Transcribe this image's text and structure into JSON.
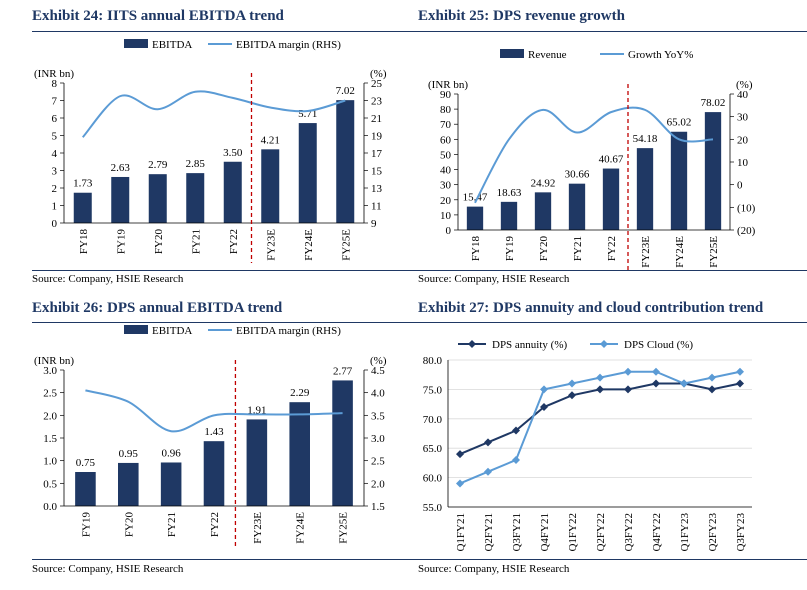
{
  "colors": {
    "title": "#1f3864",
    "bar": "#1f3864",
    "line": "#5b9bd5",
    "divider": "#c00000",
    "grid": "#d9d9d9"
  },
  "panels": [
    {
      "title": "Exhibit 24: IITS annual EBITDA trend",
      "source": "Source: Company, HSIE Research",
      "chart_data": {
        "type": "bar",
        "categories": [
          "FY18",
          "FY19",
          "FY20",
          "FY21",
          "FY22",
          "FY23E",
          "FY24E",
          "FY25E"
        ],
        "series": [
          {
            "name": "EBITDA",
            "axis": "left",
            "type": "bar",
            "values": [
              1.73,
              2.63,
              2.79,
              2.85,
              3.5,
              4.21,
              5.71,
              7.02
            ],
            "labels": [
              "1.73",
              "2.63",
              "2.79",
              "2.85",
              "3.50",
              "4.21",
              "5.71",
              "7.02"
            ]
          },
          {
            "name": "EBITDA margin (RHS)",
            "axis": "right",
            "type": "line",
            "values": [
              18.8,
              23.5,
              22.0,
              24.0,
              23.3,
              22.2,
              21.8,
              23.0
            ]
          }
        ],
        "left_axis": {
          "label": "(INR bn)",
          "min": 0,
          "max": 8,
          "ticks": [
            0,
            1,
            2,
            3,
            4,
            5,
            6,
            7,
            8
          ],
          "tick_labels": [
            "0",
            "1",
            "2",
            "3",
            "4",
            "5",
            "6",
            "7",
            "8"
          ]
        },
        "right_axis": {
          "label": "(%)",
          "min": 9,
          "max": 25,
          "ticks": [
            9,
            11,
            13,
            15,
            17,
            19,
            21,
            23,
            25
          ],
          "tick_labels": [
            "9",
            "11",
            "13",
            "15",
            "17",
            "19",
            "21",
            "23",
            "25"
          ]
        },
        "divider_after_index": 4
      }
    },
    {
      "title": "Exhibit 25: DPS revenue growth",
      "source": "Source: Company, HSIE Research",
      "chart_data": {
        "type": "bar",
        "categories": [
          "FY18",
          "FY19",
          "FY20",
          "FY21",
          "FY22",
          "FY23E",
          "FY24E",
          "FY25E"
        ],
        "series": [
          {
            "name": "Revenue",
            "axis": "left",
            "type": "bar",
            "values": [
              15.47,
              18.63,
              24.92,
              30.66,
              40.67,
              54.18,
              65.02,
              78.02
            ],
            "labels": [
              "15.47",
              "18.63",
              "24.92",
              "30.66",
              "40.67",
              "54.18",
              "65.02",
              "78.02"
            ]
          },
          {
            "name": "Growth YoY%",
            "axis": "right",
            "type": "line",
            "start_index": 0,
            "values": [
              -8,
              20,
              33,
              23,
              32,
              33,
              20,
              20
            ]
          }
        ],
        "left_axis": {
          "label": "(INR bn)",
          "min": 0,
          "max": 90,
          "ticks": [
            0,
            10,
            20,
            30,
            40,
            50,
            60,
            70,
            80,
            90
          ],
          "tick_labels": [
            "0",
            "10",
            "20",
            "30",
            "40",
            "50",
            "60",
            "70",
            "80",
            "90"
          ]
        },
        "right_axis": {
          "label": "(%)",
          "min": -20,
          "max": 40,
          "ticks": [
            -20,
            -10,
            0,
            10,
            20,
            30,
            40
          ],
          "tick_labels": [
            "(20)",
            "(10)",
            "0",
            "10",
            "20",
            "30",
            "40"
          ]
        },
        "divider_after_index": 4
      }
    },
    {
      "title": "Exhibit 26: DPS annual EBITDA trend",
      "source": "Source: Company, HSIE Research",
      "chart_data": {
        "type": "bar",
        "categories": [
          "FY19",
          "FY20",
          "FY21",
          "FY22",
          "FY23E",
          "FY24E",
          "FY25E"
        ],
        "series": [
          {
            "name": "EBITDA",
            "axis": "left",
            "type": "bar",
            "values": [
              0.75,
              0.95,
              0.96,
              1.43,
              1.91,
              2.29,
              2.77
            ],
            "labels": [
              "0.75",
              "0.95",
              "0.96",
              "1.43",
              "1.91",
              "2.29",
              "2.77"
            ]
          },
          {
            "name": "EBITDA margin (RHS)",
            "axis": "right",
            "type": "line",
            "values": [
              4.05,
              3.8,
              3.15,
              3.5,
              3.52,
              3.52,
              3.55
            ]
          }
        ],
        "left_axis": {
          "label": "(INR bn)",
          "min": 0,
          "max": 3.0,
          "ticks": [
            0,
            0.5,
            1.0,
            1.5,
            2.0,
            2.5,
            3.0
          ],
          "tick_labels": [
            "0.0",
            "0.5",
            "1.0",
            "1.5",
            "2.0",
            "2.5",
            "3.0"
          ]
        },
        "right_axis": {
          "label": "(%)",
          "min": 1.5,
          "max": 4.5,
          "ticks": [
            1.5,
            2.0,
            2.5,
            3.0,
            3.5,
            4.0,
            4.5
          ],
          "tick_labels": [
            "1.5",
            "2.0",
            "2.5",
            "3.0",
            "3.5",
            "4.0",
            "4.5"
          ]
        },
        "divider_after_index": 3
      }
    },
    {
      "title": "Exhibit 27: DPS annuity and cloud contribution trend",
      "source": "Source: Company, HSIE Research",
      "chart_data": {
        "type": "line",
        "categories": [
          "Q1FY21",
          "Q2FY21",
          "Q3FY21",
          "Q4FY21",
          "Q1FY22",
          "Q2FY22",
          "Q3FY22",
          "Q4FY22",
          "Q1FY23",
          "Q2FY23",
          "Q3FY23"
        ],
        "series": [
          {
            "name": "DPS annuity (%)",
            "values": [
              64,
              66,
              68,
              72,
              74,
              75,
              75,
              76,
              76,
              75,
              76
            ],
            "color": "#1f3864",
            "marker": "diamond"
          },
          {
            "name": "DPS Cloud (%)",
            "values": [
              59,
              61,
              63,
              75,
              76,
              77,
              78,
              78,
              76,
              77,
              78
            ],
            "color": "#5b9bd5",
            "marker": "diamond"
          }
        ],
        "left_axis": {
          "min": 55,
          "max": 80,
          "ticks": [
            55,
            60,
            65,
            70,
            75,
            80
          ],
          "tick_labels": [
            "55.0",
            "60.0",
            "65.0",
            "70.0",
            "75.0",
            "80.0"
          ]
        },
        "grid": true
      }
    }
  ]
}
